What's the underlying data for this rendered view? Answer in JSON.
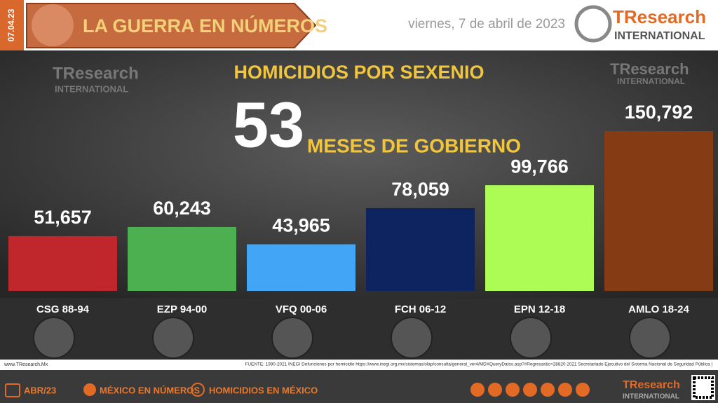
{
  "header": {
    "date_tag": "07.04.23",
    "title": "LA GUERRA EN NÚMEROS",
    "date": "viernes, 7 de abril de 2023",
    "logo": "TResearch",
    "logo_sub": "INTERNATIONAL"
  },
  "chart_data": {
    "type": "bar",
    "title": "HOMICIDIOS POR SEXENIO",
    "annotations": [
      "53",
      "MESES DE GOBIERNO"
    ],
    "categories": [
      "CSG 88-94",
      "EZP 94-00",
      "VFQ 00-06",
      "FCH 06-12",
      "EPN 12-18",
      "AMLO 18-24"
    ],
    "values": [
      51657,
      60243,
      43965,
      78059,
      99766,
      150792
    ],
    "value_labels": [
      "51,657",
      "60,243",
      "43,965",
      "78,059",
      "99,766",
      "150,792"
    ],
    "colors": [
      "#c0272d",
      "#4caf50",
      "#42a5f5",
      "#0e2461",
      "#adfc56",
      "#853c14"
    ]
  },
  "footer": {
    "site": "www.TResearch.Mx",
    "source": "FUENTE: 1990-2021 INEGI Defunciones por homicidio https://www.inegi.org.mx/sistemas/olap/consulta/general_ver4/MDXQueryDatos.asp?#Regresar&c=28820   2021 Secretariado Ejecutivo del Sistema Nacional de Seguridad Pública |",
    "items": [
      "ABR/23",
      "MÉXICO EN NÚMEROS",
      "HOMICIDIOS EN MÉXICO"
    ]
  }
}
